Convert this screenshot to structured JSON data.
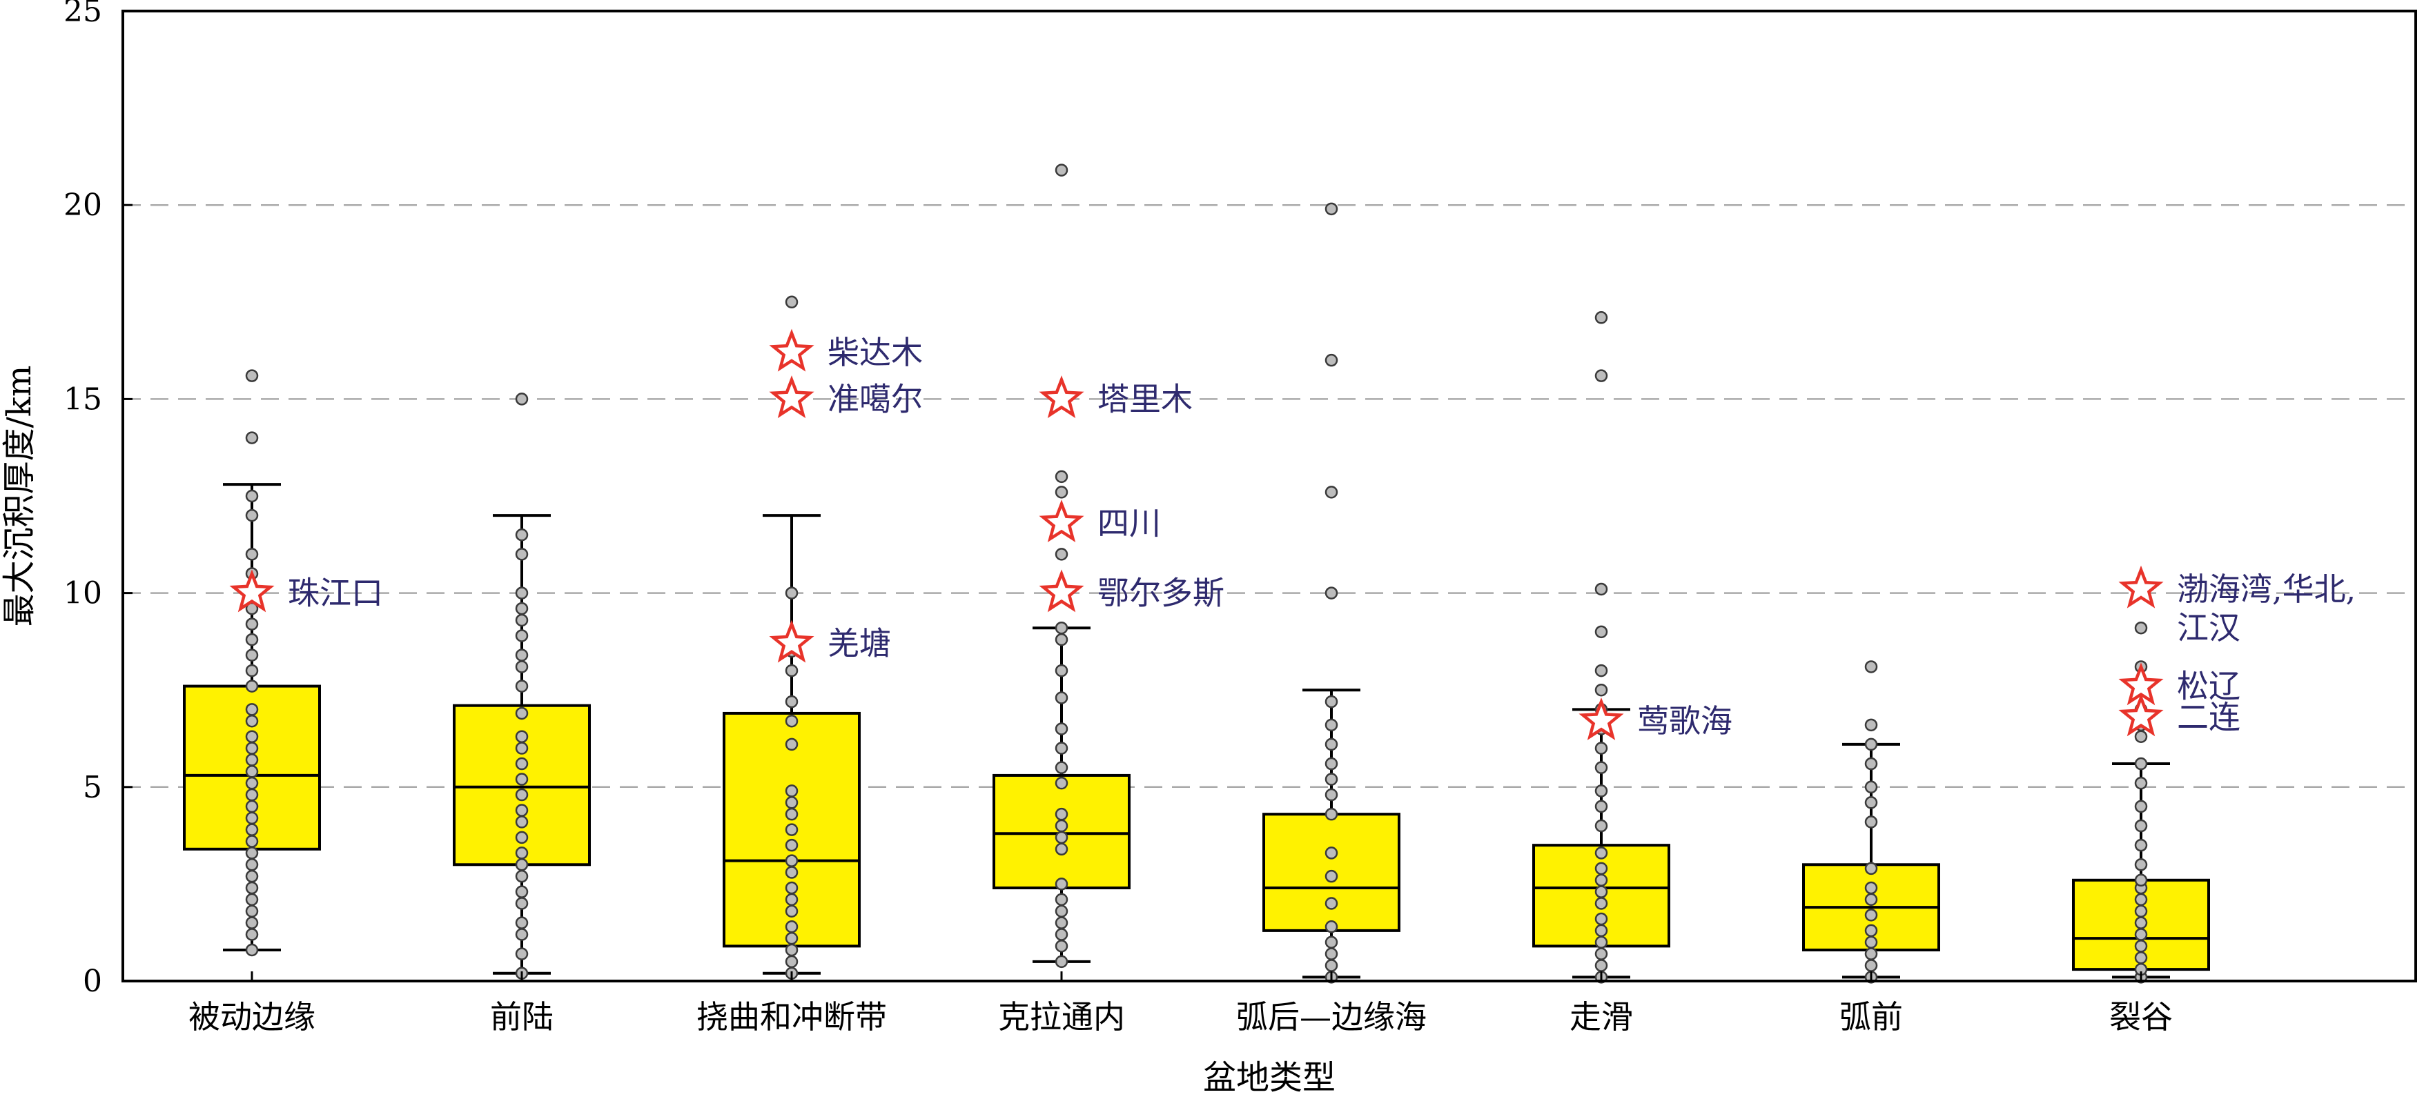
{
  "chart_data": {
    "type": "box",
    "xlabel": "盆地类型",
    "ylabel": "最大沉积厚度/km",
    "ylim": [
      0,
      25
    ],
    "yticks": [
      0,
      5,
      10,
      15,
      20,
      25
    ],
    "grid": {
      "horizontal_dashed_at": [
        5,
        10,
        15,
        20
      ]
    },
    "colors": {
      "box_fill": "#fff200",
      "point_fill": "#bdbdbd",
      "star": "#e8332a",
      "annotation_text": "#2e2a6e"
    },
    "categories": [
      "被动边缘",
      "前陆",
      "挠曲和冲断带",
      "克拉通内",
      "弧后—边缘海",
      "走滑",
      "弧前",
      "裂谷"
    ],
    "boxes": [
      {
        "q1": 3.4,
        "median": 5.3,
        "q3": 7.6,
        "whisker_low": 0.8,
        "whisker_high": 12.8
      },
      {
        "q1": 3.0,
        "median": 5.0,
        "q3": 7.1,
        "whisker_low": 0.2,
        "whisker_high": 12.0
      },
      {
        "q1": 0.9,
        "median": 3.1,
        "q3": 6.9,
        "whisker_low": 0.2,
        "whisker_high": 12.0
      },
      {
        "q1": 2.4,
        "median": 3.8,
        "q3": 5.3,
        "whisker_low": 0.5,
        "whisker_high": 9.1
      },
      {
        "q1": 1.3,
        "median": 2.4,
        "q3": 4.3,
        "whisker_low": 0.1,
        "whisker_high": 7.5
      },
      {
        "q1": 0.9,
        "median": 2.4,
        "q3": 3.5,
        "whisker_low": 0.1,
        "whisker_high": 7.0
      },
      {
        "q1": 0.8,
        "median": 1.9,
        "q3": 3.0,
        "whisker_low": 0.1,
        "whisker_high": 6.1
      },
      {
        "q1": 0.3,
        "median": 1.1,
        "q3": 2.6,
        "whisker_low": 0.1,
        "whisker_high": 5.6
      }
    ],
    "points": [
      [
        0.8,
        1.2,
        1.5,
        1.8,
        2.1,
        2.4,
        2.7,
        3.0,
        3.3,
        3.6,
        3.9,
        4.2,
        4.5,
        4.8,
        5.1,
        5.4,
        5.7,
        6.0,
        6.3,
        6.7,
        7.0,
        7.6,
        8.0,
        8.4,
        8.8,
        9.2,
        9.6,
        10.0,
        10.5,
        11.0,
        12.0,
        12.5,
        14.0,
        15.6
      ],
      [
        0.2,
        0.7,
        1.2,
        1.5,
        2.0,
        2.3,
        2.7,
        3.0,
        3.3,
        3.7,
        4.1,
        4.4,
        4.8,
        5.2,
        5.6,
        6.0,
        6.3,
        6.9,
        7.6,
        8.1,
        8.4,
        8.9,
        9.3,
        9.6,
        10.0,
        11.0,
        11.5,
        15.0
      ],
      [
        0.2,
        0.5,
        0.8,
        1.1,
        1.4,
        1.8,
        2.1,
        2.4,
        2.8,
        3.1,
        3.5,
        3.9,
        4.3,
        4.6,
        4.9,
        6.1,
        6.7,
        7.2,
        8.0,
        8.5,
        10.0,
        17.5
      ],
      [
        0.5,
        0.9,
        1.2,
        1.5,
        1.8,
        2.1,
        2.5,
        3.4,
        3.7,
        4.0,
        4.3,
        5.1,
        5.5,
        6.0,
        6.5,
        7.3,
        8.0,
        8.8,
        9.1,
        11.0,
        12.6,
        13.0,
        20.9
      ],
      [
        0.1,
        0.4,
        0.7,
        1.0,
        1.4,
        2.0,
        2.7,
        3.3,
        4.3,
        4.8,
        5.2,
        5.6,
        6.1,
        6.6,
        7.2,
        10.0,
        12.6,
        16.0,
        19.9
      ],
      [
        0.1,
        0.4,
        0.7,
        1.0,
        1.3,
        1.6,
        2.0,
        2.3,
        2.6,
        2.9,
        3.3,
        4.0,
        4.5,
        4.9,
        5.5,
        6.0,
        6.5,
        7.0,
        7.5,
        8.0,
        9.0,
        10.1,
        15.6,
        17.1
      ],
      [
        0.1,
        0.4,
        0.7,
        1.0,
        1.3,
        1.7,
        2.1,
        2.4,
        2.9,
        4.1,
        4.6,
        5.0,
        5.6,
        6.1,
        6.6,
        8.1
      ],
      [
        0.1,
        0.3,
        0.6,
        0.9,
        1.2,
        1.5,
        1.8,
        2.1,
        2.4,
        2.6,
        3.0,
        3.5,
        4.0,
        4.5,
        5.1,
        5.6,
        6.3,
        6.6,
        7.0,
        7.5,
        8.1,
        9.1
      ]
    ],
    "annotations": [
      {
        "category_index": 0,
        "value": 10.0,
        "label": "珠江口"
      },
      {
        "category_index": 2,
        "value": 16.2,
        "label": "柴达木"
      },
      {
        "category_index": 2,
        "value": 15.0,
        "label": "准噶尔"
      },
      {
        "category_index": 2,
        "value": 8.7,
        "label": "羌塘"
      },
      {
        "category_index": 3,
        "value": 15.0,
        "label": "塔里木"
      },
      {
        "category_index": 3,
        "value": 11.8,
        "label": "四川"
      },
      {
        "category_index": 3,
        "value": 10.0,
        "label": "鄂尔多斯"
      },
      {
        "category_index": 5,
        "value": 6.7,
        "label": "莺歌海"
      },
      {
        "category_index": 7,
        "value": 10.1,
        "label": "渤海湾,华北,",
        "label2": "江汉"
      },
      {
        "category_index": 7,
        "value": 7.6,
        "label": "松辽"
      },
      {
        "category_index": 7,
        "value": 6.8,
        "label": "二连"
      }
    ]
  }
}
